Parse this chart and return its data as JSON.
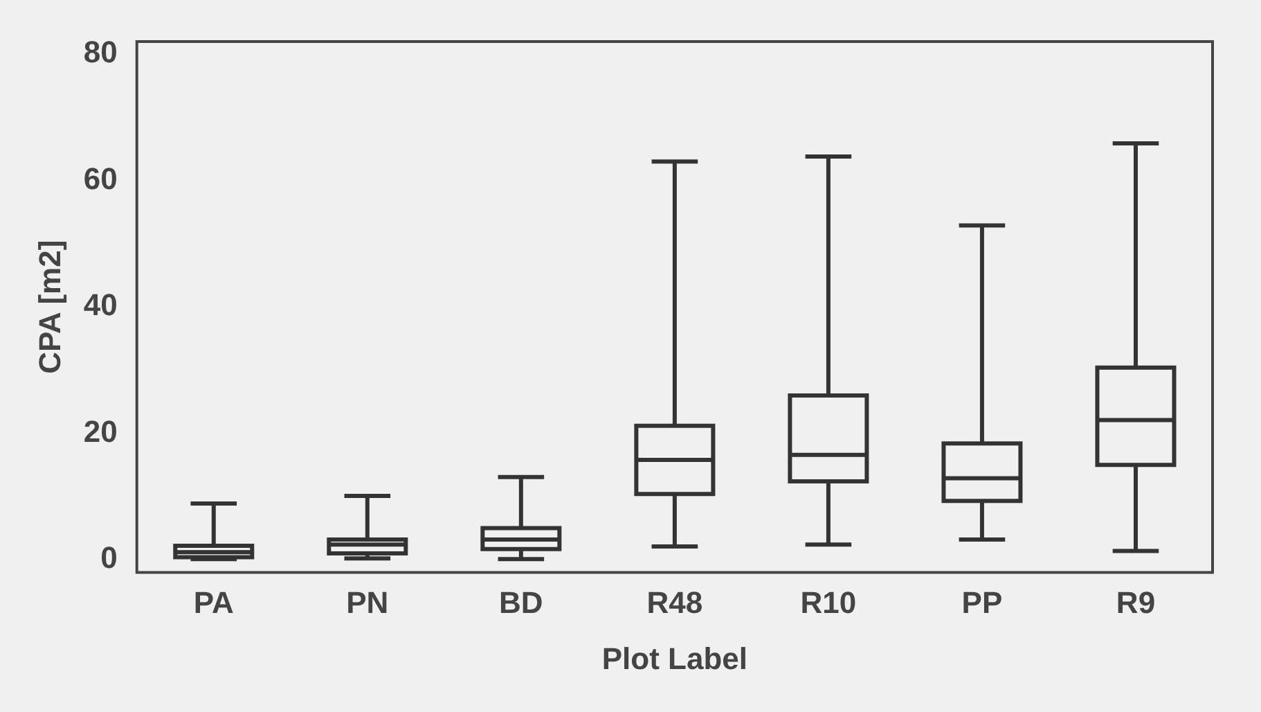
{
  "chart_data": {
    "type": "box",
    "xlabel": "Plot Label",
    "ylabel": "CPA [m2]",
    "categories": [
      "PA",
      "PN",
      "BD",
      "R48",
      "R10",
      "PP",
      "R9"
    ],
    "boxes": [
      {
        "low": 0.1,
        "q1": 0.4,
        "median": 1.2,
        "q3": 2.2,
        "high": 8.9
      },
      {
        "low": 0.2,
        "q1": 1.0,
        "median": 2.4,
        "q3": 3.2,
        "high": 10.1
      },
      {
        "low": 0.1,
        "q1": 1.7,
        "median": 3.2,
        "q3": 5.0,
        "high": 13.1
      },
      {
        "low": 2.1,
        "q1": 10.4,
        "median": 15.8,
        "q3": 21.2,
        "high": 63.0
      },
      {
        "low": 2.4,
        "q1": 12.4,
        "median": 16.6,
        "q3": 26.0,
        "high": 63.8
      },
      {
        "low": 3.2,
        "q1": 9.3,
        "median": 12.9,
        "q3": 18.4,
        "high": 52.9
      },
      {
        "low": 1.4,
        "q1": 15.0,
        "median": 22.1,
        "q3": 30.4,
        "high": 65.9
      }
    ],
    "color": "#333333",
    "ylim": [
      -2,
      82
    ],
    "yticks": [
      0,
      20,
      40,
      60,
      80
    ],
    "grid": false,
    "legend": false
  }
}
